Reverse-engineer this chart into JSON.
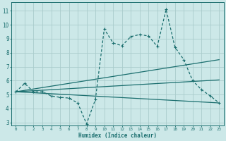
{
  "xlabel": "Humidex (Indice chaleur)",
  "bg_color": "#cce8e8",
  "grid_color": "#aacccc",
  "line_color": "#1a6e6e",
  "xlim": [
    -0.5,
    23.5
  ],
  "ylim": [
    2.8,
    11.6
  ],
  "xticks": [
    0,
    1,
    2,
    3,
    4,
    5,
    6,
    7,
    8,
    9,
    10,
    11,
    12,
    13,
    14,
    15,
    16,
    17,
    18,
    19,
    20,
    21,
    22,
    23
  ],
  "yticks": [
    3,
    4,
    5,
    6,
    7,
    8,
    9,
    10,
    11
  ],
  "line1_x": [
    0,
    1,
    2,
    3,
    4,
    5,
    6,
    7,
    8,
    9,
    10,
    11,
    12,
    13,
    14,
    15,
    16,
    17,
    18,
    19,
    20,
    21,
    22,
    23
  ],
  "line1_y": [
    5.2,
    5.8,
    5.2,
    5.2,
    4.9,
    4.8,
    4.75,
    4.4,
    2.9,
    4.65,
    9.7,
    8.7,
    8.5,
    9.15,
    9.3,
    9.2,
    8.45,
    11.1,
    8.4,
    7.5,
    6.0,
    5.35,
    4.9,
    4.4
  ],
  "line2_x": [
    0,
    23
  ],
  "line2_y": [
    5.2,
    7.5
  ],
  "line3_x": [
    0,
    23
  ],
  "line3_y": [
    5.2,
    6.05
  ],
  "line4_x": [
    0,
    23
  ],
  "line4_y": [
    5.2,
    4.4
  ]
}
